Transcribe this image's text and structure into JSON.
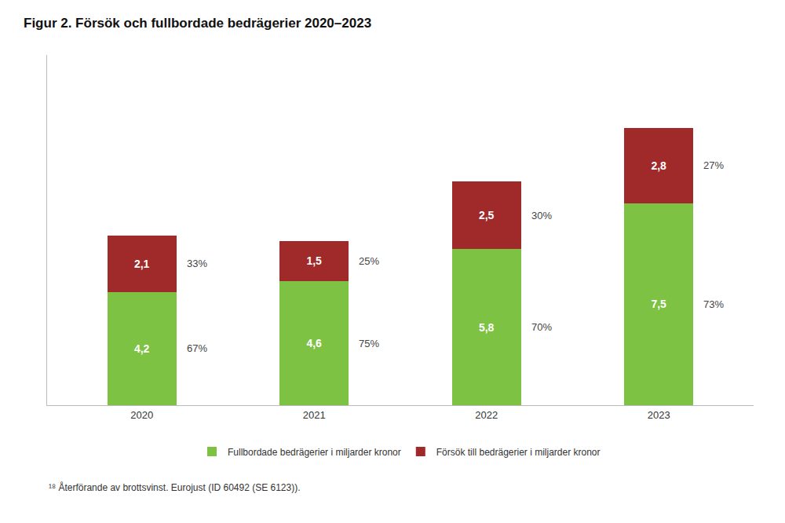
{
  "chart_data": {
    "type": "bar",
    "title": "Figur 2. Försök och fullbordade bedrägerier 2020–2023",
    "categories": [
      "2020",
      "2021",
      "2022",
      "2023"
    ],
    "stacked": true,
    "data_labels": true,
    "series": [
      {
        "name": "Fullbordade bedrägerier i miljarder kronor",
        "color": "#7DC242",
        "values": [
          4.2,
          4.6,
          5.8,
          7.5
        ],
        "value_labels": [
          "4,2",
          "4,6",
          "5,8",
          "7,5"
        ],
        "shares": [
          67,
          75,
          70,
          73
        ],
        "share_labels": [
          "67%",
          "75%",
          "70%",
          "73%"
        ]
      },
      {
        "name": "Försök till bedrägerier i miljarder kronor",
        "color": "#A0292A",
        "values": [
          2.1,
          1.5,
          2.5,
          2.8
        ],
        "value_labels": [
          "2,1",
          "1,5",
          "2,5",
          "2,8"
        ],
        "shares": [
          33,
          25,
          30,
          27
        ],
        "share_labels": [
          "33%",
          "25%",
          "30%",
          "27%"
        ]
      }
    ],
    "ylim": [
      0,
      13
    ],
    "tick_labels": "x",
    "grid": false,
    "legend": "bottom",
    "annotations": [
      "¹⁸ Återförande av brottsvinst. Eurojust (ID 60492 (SE 6123))."
    ]
  }
}
